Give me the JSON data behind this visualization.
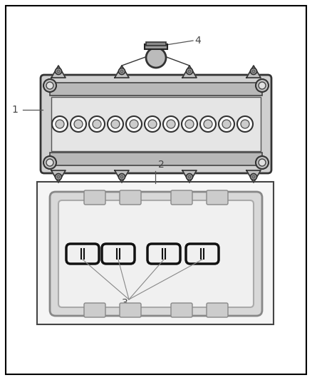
{
  "bg_color": "#ffffff",
  "border_color": "#000000",
  "label1": "1",
  "label2": "2",
  "label3": "3",
  "label4": "4",
  "fig_width": 4.38,
  "fig_height": 5.33
}
